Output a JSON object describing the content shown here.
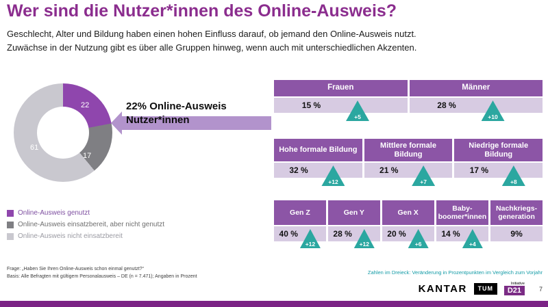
{
  "header": {
    "title": "Wer sind die Nutzer*innen des Online-Ausweis?",
    "subtitle1": "Geschlecht, Alter und Bildung haben einen hohen Einfluss darauf, ob jemand den Online-Ausweis nutzt.",
    "subtitle2": "Zuwächse in der Nutzung gibt es über alle Gruppen hinweg, wenn auch mit unterschiedlichen Akzenten."
  },
  "chart_data": {
    "type": "pie",
    "title": "22% Online-Ausweis Nutzer*innen",
    "donut": {
      "labels": [
        "22",
        "17",
        "61"
      ],
      "values": [
        22,
        17,
        61
      ],
      "colors": [
        "#8f46ad",
        "#7f7f83",
        "#c9c8cf"
      ]
    },
    "callout_line1": "22% Online-Ausweis",
    "callout_line2": "Nutzer*innen",
    "tables": [
      {
        "cols": [
          {
            "header": "Frauen",
            "value": "15 %",
            "delta": "+5"
          },
          {
            "header": "Männer",
            "value": "28 %",
            "delta": "+10"
          }
        ]
      },
      {
        "cols": [
          {
            "header": "Hohe formale Bildung",
            "value": "32 %",
            "delta": "+12"
          },
          {
            "header": "Mittlere formale Bildung",
            "value": "21 %",
            "delta": "+7"
          },
          {
            "header": "Niedrige formale Bildung",
            "value": "17 %",
            "delta": "+8"
          }
        ]
      },
      {
        "cols": [
          {
            "header": "Gen Z",
            "value": "40 %",
            "delta": "+12"
          },
          {
            "header": "Gen Y",
            "value": "28 %",
            "delta": "+12"
          },
          {
            "header": "Gen X",
            "value": "20 %",
            "delta": "+6"
          },
          {
            "header": "Baby-boomer*innen",
            "value": "14 %",
            "delta": "+4"
          },
          {
            "header": "Nachkriegs-generation",
            "value": "9%",
            "delta": ""
          }
        ]
      }
    ]
  },
  "legend": [
    {
      "label": "Online-Ausweis genutzt",
      "color": "#8f46ad"
    },
    {
      "label": "Online-Ausweis einsatzbereit, aber nicht genutzt",
      "color": "#7f7f83"
    },
    {
      "label": "Online-Ausweis nicht einsatzbereit",
      "color": "#c9c8cf"
    }
  ],
  "footnote": {
    "line1": "Frage: „Haben Sie Ihren Online-Ausweis schon einmal genutzt?“",
    "line2": "Basis: Alle Befragten mit gültigem Personalausweis – DE (n = 7.471); Angaben in Prozent"
  },
  "notes": {
    "triangle_note": "Zahlen im Dreieck: Veränderung in Prozentpunkten im Vergleich zum Vorjahr"
  },
  "footer": {
    "kantar": "KANTAR",
    "tum": "TUM",
    "d21_initiative": "Initiative",
    "d21": "D21",
    "page_number": "7"
  },
  "colors": {
    "title_purple": "#8b2d8e",
    "table_header_purple": "#8c55a6",
    "table_row_lavender": "#d7cbe2",
    "triangle_teal": "#2ba7a0",
    "arrow_purple": "#b293cc",
    "bottom_bar_purple": "#7b2385",
    "note_teal": "#129ba6"
  }
}
